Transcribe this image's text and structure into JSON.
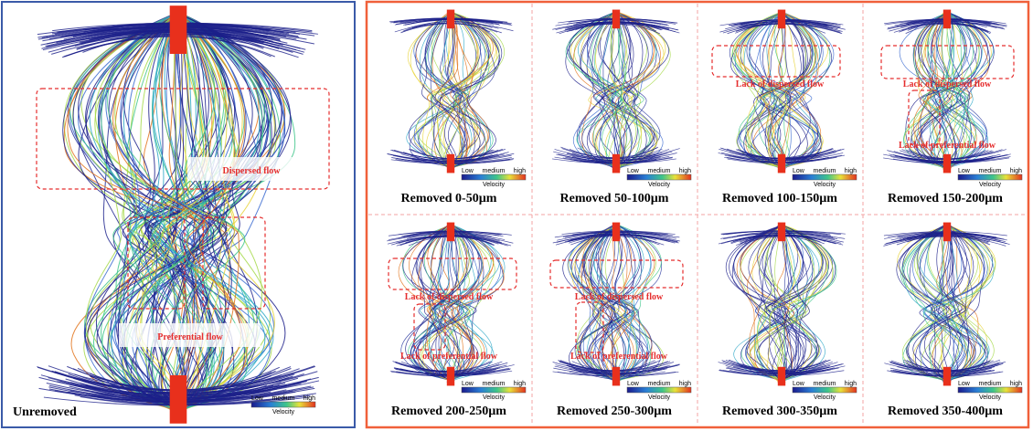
{
  "left_panel": {
    "caption": "Unremoved",
    "annotations": [
      "Dispersed flow",
      "Preferential flow"
    ],
    "legend": {
      "low": "Low",
      "medium": "medium",
      "high": "high",
      "title": "Velocity"
    }
  },
  "panels": [
    {
      "caption": "Removed 0-50µm",
      "annotations": [],
      "legend": {
        "low": "Low",
        "medium": "medium",
        "high": "high",
        "title": "Velocity"
      }
    },
    {
      "caption": "Removed 50-100µm",
      "annotations": [],
      "legend": {
        "low": "Low",
        "medium": "medium",
        "high": "high",
        "title": "Velocity"
      }
    },
    {
      "caption": "Removed 100-150µm",
      "annotations": [
        "Lack of dispersed flow"
      ],
      "legend": {
        "low": "Low",
        "medium": "medium",
        "high": "high",
        "title": "Velocity"
      }
    },
    {
      "caption": "Removed 150-200µm",
      "annotations": [
        "Lack of dispersed flow",
        "Lack of preferential flow"
      ],
      "legend": {
        "low": "Low",
        "medium": "medium",
        "high": "high",
        "title": "Velocity"
      }
    },
    {
      "caption": "Removed 200-250µm",
      "annotations": [
        "Lack of dispersed flow",
        "Lack of preferential flow"
      ],
      "legend": {
        "low": "Low",
        "medium": "medium",
        "high": "high",
        "title": "Velocity"
      }
    },
    {
      "caption": "Removed 250-300µm",
      "annotations": [
        "Lack of dispersed flow",
        "Lack of preferential flow"
      ],
      "legend": {
        "low": "Low",
        "medium": "medium",
        "high": "high",
        "title": "Velocity"
      }
    },
    {
      "caption": "Removed 300-350µm",
      "annotations": [],
      "legend": {
        "low": "Low",
        "medium": "medium",
        "high": "high",
        "title": "Velocity"
      }
    },
    {
      "caption": "Removed 350-400µm",
      "annotations": [],
      "legend": {
        "low": "Low",
        "medium": "medium",
        "high": "high",
        "title": "Velocity"
      }
    }
  ]
}
